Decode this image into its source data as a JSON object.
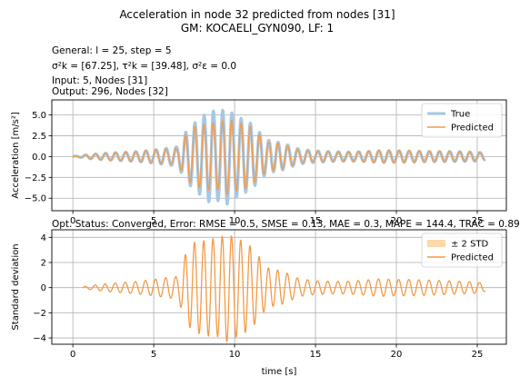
{
  "figure": {
    "title_line1": "Acceleration in node 32 predicted from nodes [31]",
    "title_line2": "GM: KOCAELI_GYN090, LF: 1",
    "info": {
      "general": "General: l = 25, step = 5",
      "sigmas": "σ²k = [67.25], τ²k = [39.48], σ²ε = 0.0",
      "input": "Input: 5, Nodes [31]",
      "output": "Output: 296, Nodes [32]"
    },
    "status": "Opt. Status: Converged, Error: RMSE = 0.5, SMSE = 0.13, MAE = 0.3, MAPE = 144.4, TRAC = 0.89"
  },
  "colors": {
    "true": "#a6c8e4",
    "predicted": "#f59a45",
    "std_band": "#fdd9a8",
    "grid": "#b0b0b0"
  },
  "chart_data": [
    {
      "type": "line",
      "title": "",
      "xlabel": "",
      "ylabel": "Acceleration [m/s²]",
      "xlim": [
        -1.3,
        26.8
      ],
      "ylim": [
        -6.5,
        6.8
      ],
      "xticks": [
        0,
        5,
        10,
        15,
        20,
        25
      ],
      "yticks": [
        -5.0,
        -2.5,
        0.0,
        2.5,
        5.0
      ],
      "ytick_labels": [
        "−5.0",
        "−2.5",
        "0.0",
        "2.5",
        "5.0"
      ],
      "grid": true,
      "legend_position": "top-right",
      "x_range": [
        0,
        25.5
      ],
      "envelope_points": {
        "t": [
          0,
          0.5,
          1,
          2,
          3,
          4,
          5,
          5.8,
          6.5,
          7,
          7.5,
          8,
          8.5,
          9,
          9.5,
          10,
          10.5,
          11,
          11.5,
          12,
          13,
          14,
          15,
          16,
          17,
          18,
          19,
          20,
          21,
          22,
          23,
          24,
          25,
          25.5
        ],
        "true_amplitude": [
          0.05,
          0.1,
          0.25,
          0.4,
          0.5,
          0.6,
          0.8,
          1.0,
          1.2,
          3.0,
          4.0,
          4.8,
          5.6,
          5.3,
          5.8,
          5.0,
          4.5,
          4.0,
          3.0,
          2.0,
          1.6,
          0.9,
          0.7,
          0.6,
          0.55,
          0.6,
          0.7,
          0.7,
          0.65,
          0.6,
          0.6,
          0.6,
          0.55,
          0.4
        ],
        "predicted_amplitude": [
          0.0,
          0.1,
          0.3,
          0.45,
          0.55,
          0.6,
          0.8,
          0.9,
          1.0,
          2.7,
          3.6,
          3.8,
          4.1,
          4.0,
          4.6,
          4.2,
          4.0,
          3.6,
          2.7,
          1.8,
          1.5,
          0.8,
          0.65,
          0.6,
          0.55,
          0.65,
          0.8,
          0.75,
          0.75,
          0.7,
          0.65,
          0.6,
          0.55,
          0.4
        ]
      },
      "series": [
        {
          "name": "True"
        },
        {
          "name": "Predicted"
        }
      ]
    },
    {
      "type": "line",
      "title": "",
      "xlabel": "time [s]",
      "ylabel": "Standard deviation",
      "xlim": [
        -1.3,
        26.8
      ],
      "ylim": [
        -4.5,
        4.6
      ],
      "xticks": [
        0,
        5,
        10,
        15,
        20,
        25
      ],
      "yticks": [
        -4,
        -2,
        0,
        2,
        4
      ],
      "ytick_labels": [
        "−4",
        "−2",
        "0",
        "2",
        "4"
      ],
      "grid": true,
      "legend_position": "top-right",
      "x_range": [
        0.6,
        25.5
      ],
      "envelope_points": {
        "t": [
          0.6,
          1,
          2,
          3,
          4,
          5,
          5.8,
          6.5,
          7,
          7.5,
          8,
          8.5,
          9,
          9.5,
          10,
          10.5,
          11,
          11.5,
          12,
          13,
          14,
          15,
          16,
          17,
          18,
          19,
          20,
          21,
          22,
          23,
          24,
          25,
          25.5
        ],
        "predicted_amplitude": [
          0.05,
          0.15,
          0.3,
          0.4,
          0.5,
          0.65,
          0.8,
          0.9,
          2.8,
          3.6,
          3.7,
          3.9,
          3.9,
          4.3,
          4.0,
          3.7,
          3.3,
          2.5,
          1.6,
          1.3,
          0.7,
          0.55,
          0.5,
          0.5,
          0.6,
          0.7,
          0.65,
          0.65,
          0.6,
          0.55,
          0.5,
          0.45,
          0.3
        ]
      },
      "series": [
        {
          "name": "± 2 STD"
        },
        {
          "name": "Predicted"
        }
      ]
    }
  ]
}
